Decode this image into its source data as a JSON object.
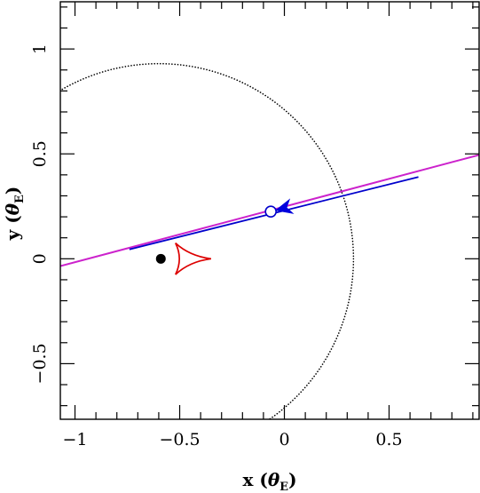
{
  "chart_data": {
    "type": "line",
    "xlabel": "x (θE)",
    "ylabel": "y (θE)",
    "xlabel_parts": {
      "main": "x (",
      "theta": "θ",
      "sub": "E",
      "close": ")"
    },
    "ylabel_parts": {
      "main": "y (",
      "theta": "θ",
      "sub": "E",
      "close": ")"
    },
    "xlim": [
      -1.07,
      0.93
    ],
    "ylim": [
      -0.765,
      1.225
    ],
    "x_major_ticks": [
      -1,
      -0.5,
      0,
      0.5
    ],
    "x_tick_labels": [
      "−1",
      "−0.5",
      "0",
      "0.5"
    ],
    "y_major_ticks": [
      -0.5,
      0,
      0.5,
      1
    ],
    "y_tick_labels": [
      "−0.5",
      "0",
      "0.5",
      "1"
    ],
    "minor_tick_step": 0.1,
    "grid": false,
    "legend": "none",
    "colors": {
      "caustic": "#dd0000",
      "trajectory": "#cc22cc",
      "fit_trajectory": "#0000cc",
      "arrow": "#0000dd",
      "source_marker": "#0000cc",
      "lens": "#000000",
      "circle": "#000000"
    },
    "dotted_circle": {
      "cx": -0.6,
      "cy": 0.0,
      "r": 0.93
    },
    "lens_point": {
      "x": -0.59,
      "y": 0.0
    },
    "caustic": {
      "cusps": [
        {
          "x": -0.35,
          "y": 0.0
        },
        {
          "x": -0.52,
          "y": 0.075
        },
        {
          "x": -0.52,
          "y": -0.075
        }
      ]
    },
    "series": [
      {
        "x": [
          -1.07,
          0.93
        ],
        "y": [
          -0.035,
          0.495
        ]
      },
      {
        "x": [
          -0.74,
          0.64
        ],
        "y": [
          0.045,
          0.39
        ]
      }
    ],
    "source_circle": {
      "x": -0.065,
      "y": 0.225
    },
    "arrow_head": {
      "tip_x": -0.045,
      "tip_y": 0.23,
      "direction": "left"
    }
  }
}
